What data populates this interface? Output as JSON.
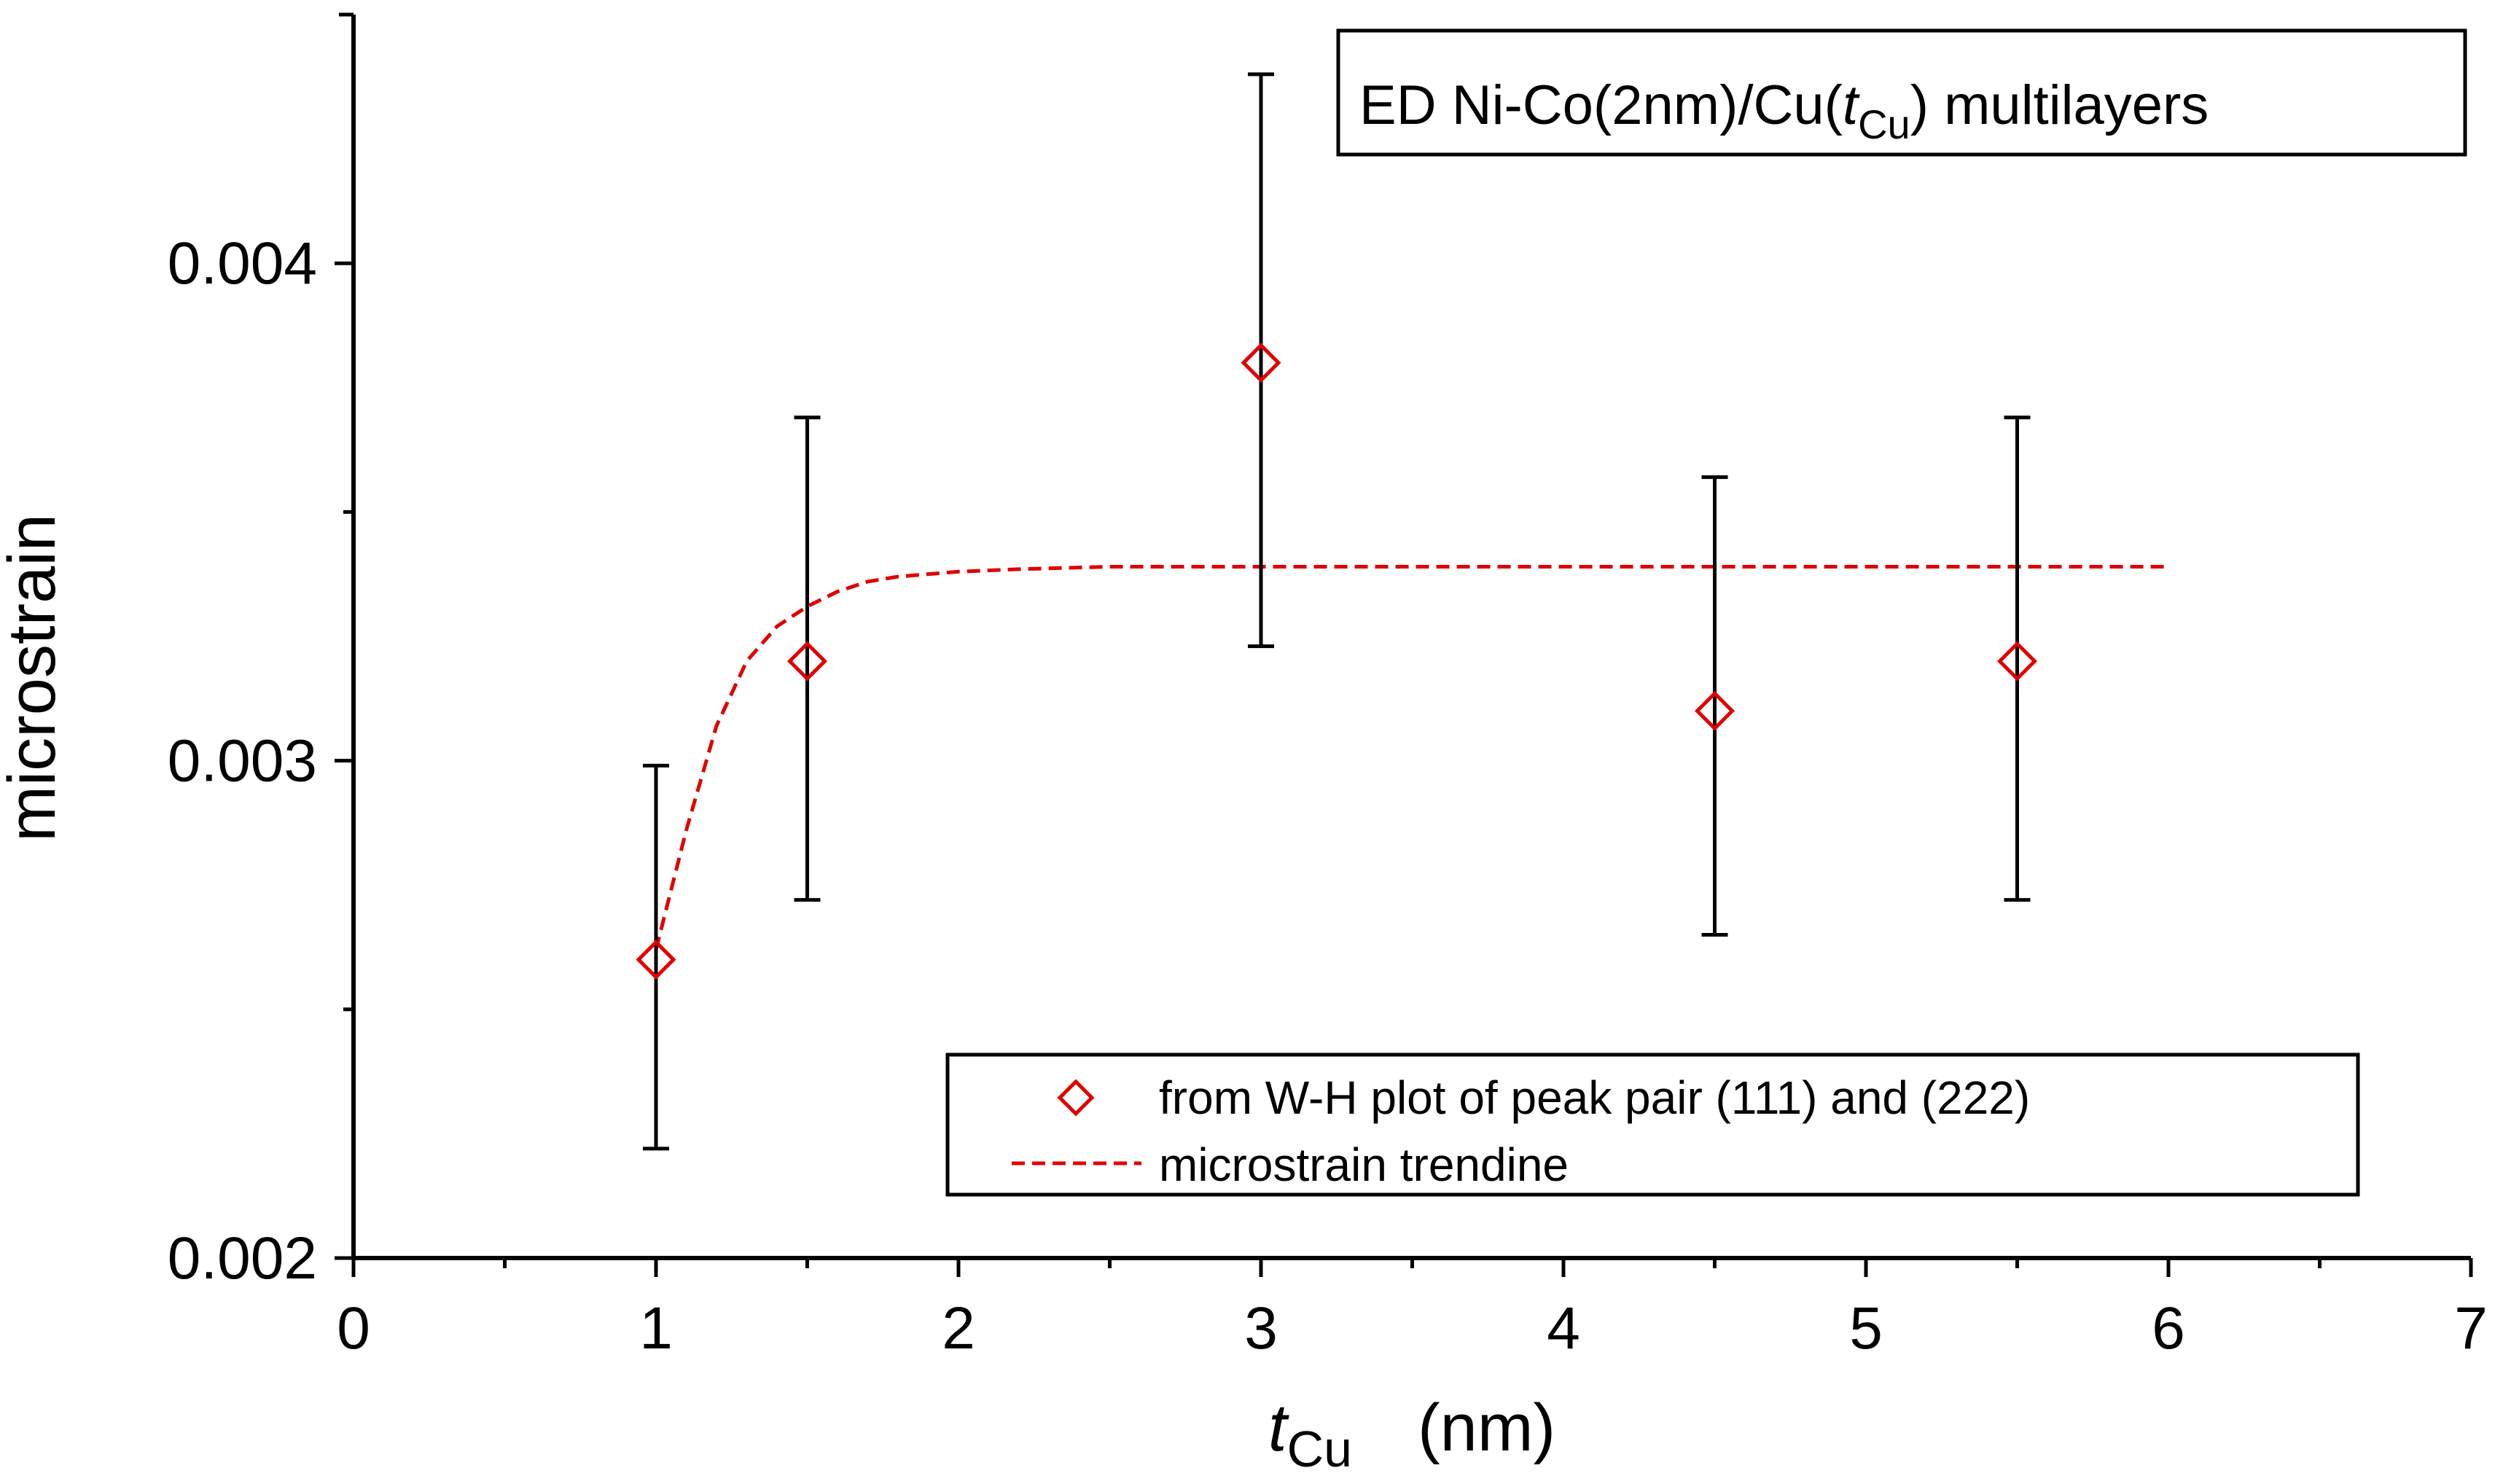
{
  "chart_data": {
    "type": "scatter",
    "title": {
      "prefix": "ED Ni-Co(2nm)/Cu(",
      "var": "t",
      "sub": "Cu",
      "suffix": ") multilayers"
    },
    "xlabel": {
      "var": "t",
      "sub": "Cu",
      "unit": "(nm)"
    },
    "ylabel": "microstrain",
    "xlim": [
      0,
      7
    ],
    "ylim": [
      0.002,
      0.0045
    ],
    "x_ticks": [
      0,
      1,
      2,
      3,
      4,
      5,
      6,
      7
    ],
    "x_minor_ticks": [
      0.5,
      1.5,
      2.5,
      3.5,
      4.5,
      5.5,
      6.5
    ],
    "y_ticks": [
      0.002,
      0.003,
      0.004
    ],
    "y_tick_labels": [
      "0.002",
      "0.003",
      "0.004"
    ],
    "y_minor_ticks": [
      0.0025,
      0.0035
    ],
    "grid": false,
    "legend_position": "bottom-right",
    "series": [
      {
        "name": "from W-H plot of peak pair (111) and (222)",
        "kind": "scatter",
        "marker": "diamond",
        "color": "#e00000",
        "x": [
          1,
          1.5,
          3,
          4.5,
          5.5
        ],
        "y": [
          0.0026,
          0.0032,
          0.0038,
          0.0031,
          0.0032
        ],
        "error_low": [
          0.00222,
          0.00272,
          0.00323,
          0.00265,
          0.00272
        ],
        "error_high": [
          0.00299,
          0.00369,
          0.00438,
          0.00357,
          0.00369
        ]
      },
      {
        "name": "microstrain trendine",
        "kind": "line",
        "style": "dashed",
        "color": "#e00000",
        "x": [
          1.0,
          1.1,
          1.2,
          1.3,
          1.4,
          1.5,
          1.6,
          1.7,
          1.8,
          2.0,
          2.2,
          2.5,
          3.0,
          4.0,
          5.0,
          6.0
        ],
        "y": [
          0.00262,
          0.00286,
          0.00307,
          0.0032,
          0.00327,
          0.00331,
          0.00334,
          0.00336,
          0.00337,
          0.00338,
          0.003385,
          0.00339,
          0.00339,
          0.00339,
          0.00339,
          0.00339
        ]
      }
    ]
  }
}
